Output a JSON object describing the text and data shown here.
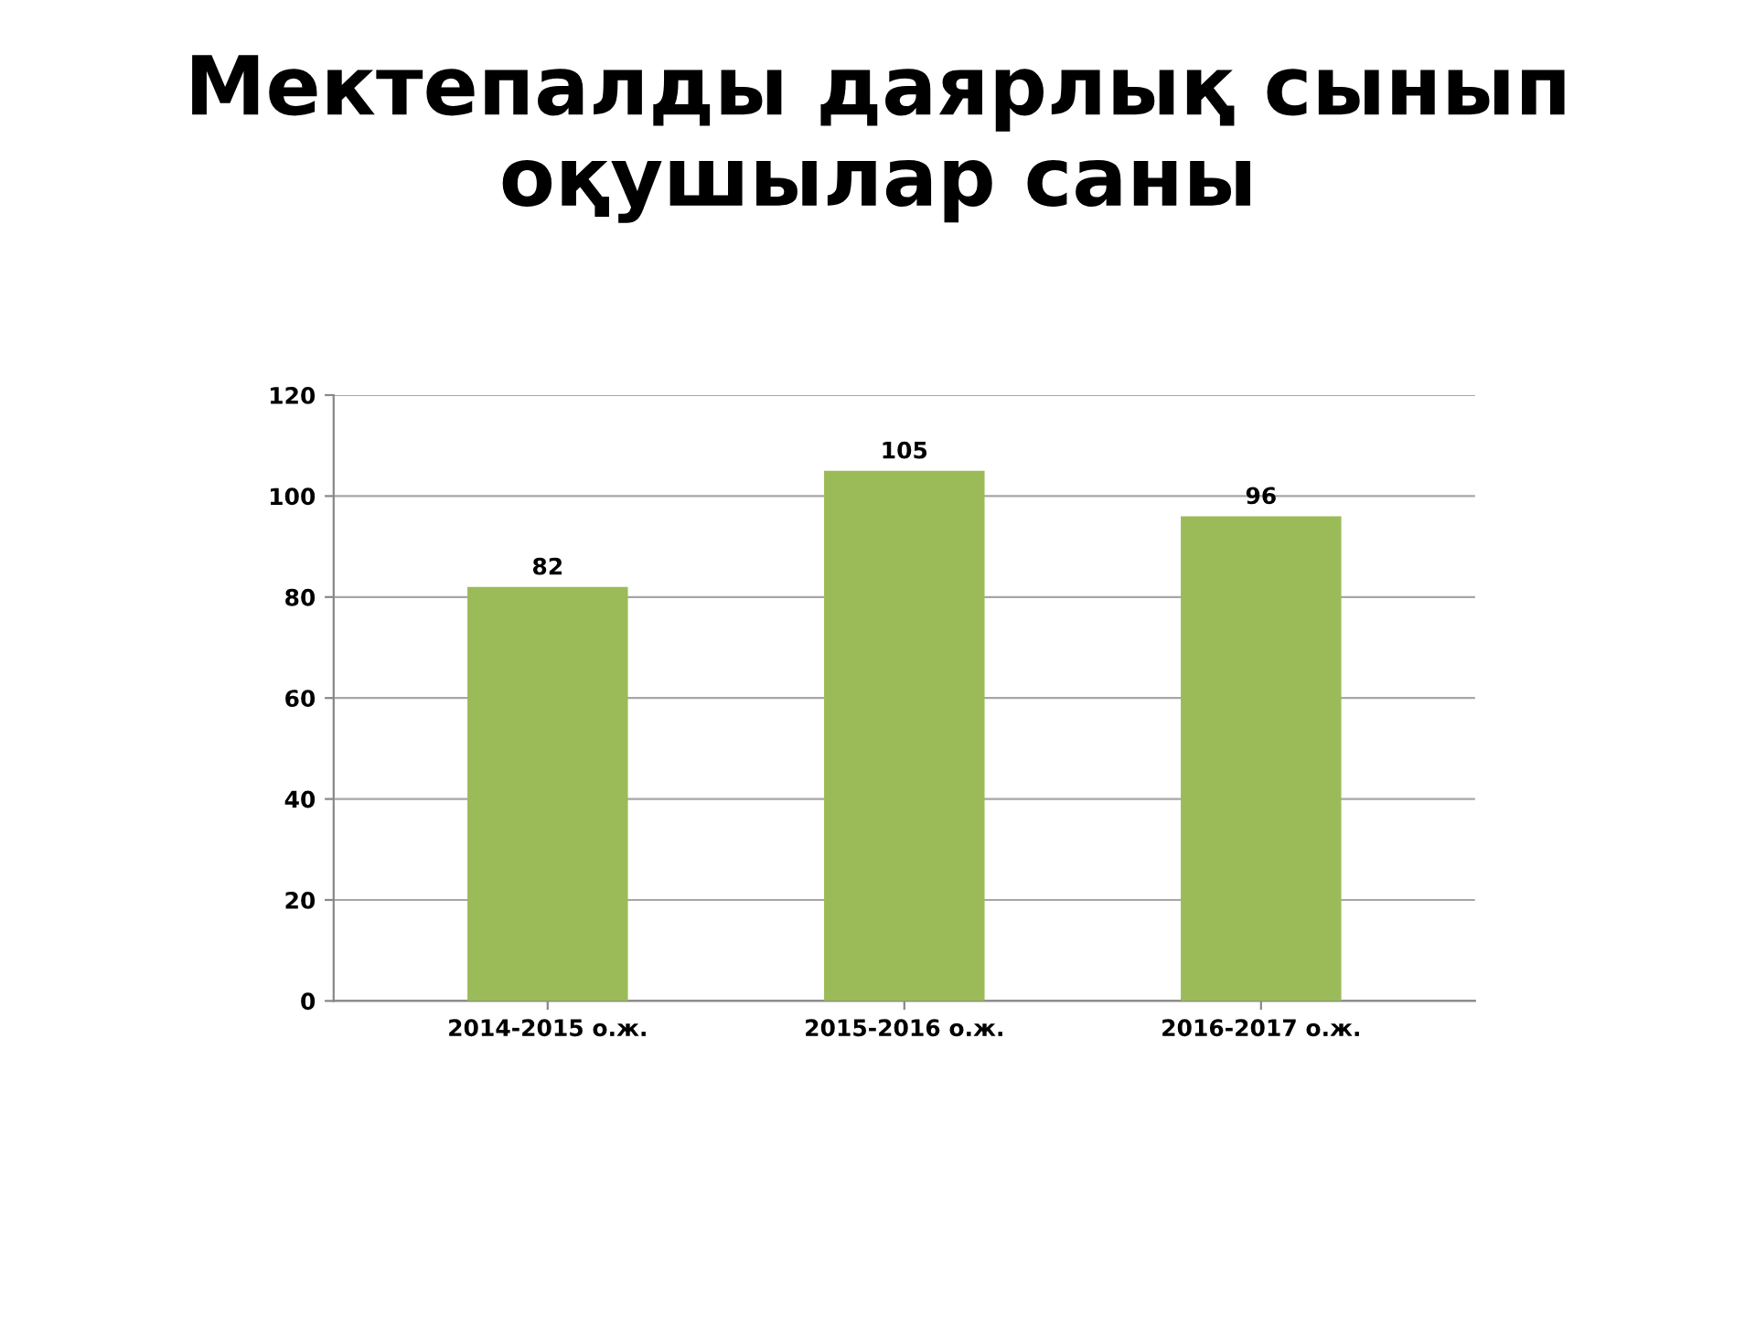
{
  "chart_data": {
    "type": "bar",
    "title": "Мектепалды даярлық сынып\nоқушылар саны",
    "categories": [
      "2014-2015 о.ж.",
      "2015-2016 о.ж.",
      "2016-2017 о.ж."
    ],
    "values": [
      82,
      105,
      96
    ],
    "color": "#9bbb59",
    "ylim": [
      0,
      120
    ],
    "yticks": [
      0,
      20,
      40,
      60,
      80,
      100,
      120
    ],
    "grid": "y",
    "data_labels": true
  }
}
